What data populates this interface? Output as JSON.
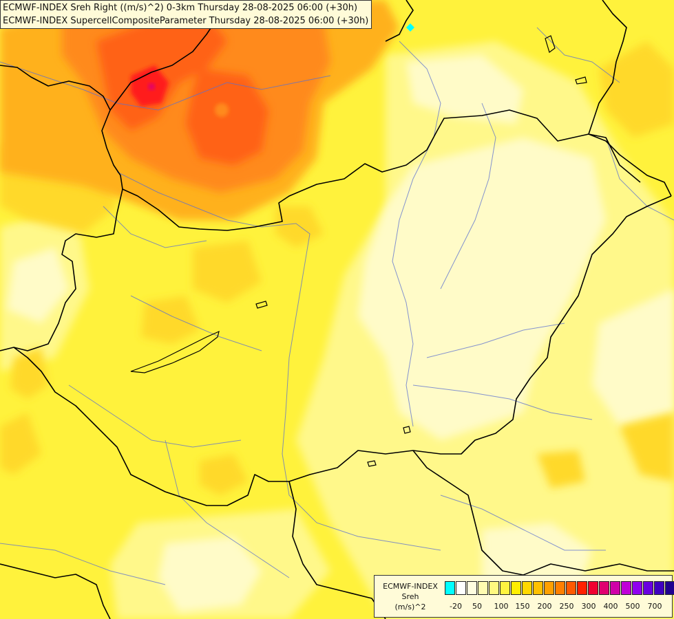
{
  "header": {
    "line1": "ECMWF-INDEX Sreh Right ((m/s)^2) 0-3km Thursday 28-08-2025 06:00 (+30h)",
    "line2": "ECMWF-INDEX SupercellCompositeParameter Thursday 28-08-2025 06:00 (+30h)"
  },
  "legend": {
    "title": [
      "ECMWF-INDEX",
      "Sreh",
      "(m/s)^2"
    ],
    "colors": [
      "#00ffff",
      "#ffffff",
      "#fffde0",
      "#fffbb0",
      "#fff880",
      "#fff440",
      "#ffee00",
      "#ffd800",
      "#ffc000",
      "#ffa000",
      "#ff8000",
      "#ff5a00",
      "#ff2000",
      "#f00030",
      "#e00070",
      "#d000a8",
      "#c000d8",
      "#9000f0",
      "#6a00e0",
      "#4000c0",
      "#200090"
    ],
    "ticks": [
      "-20",
      "50",
      "100",
      "150",
      "200",
      "250",
      "300",
      "400",
      "500",
      "700"
    ]
  },
  "map": {
    "colors": {
      "light": "#fffbc8",
      "pale": "#fff88a",
      "yellow": "#fff23c",
      "gold": "#ffd92a",
      "orange": "#ffb11e",
      "dark_orange": "#ff8a1a",
      "red_orange": "#ff6214",
      "red": "#ff1e1e",
      "magenta": "#e00070",
      "cyan": "#00ffff",
      "border": "#000000",
      "river": "#5a6fd0"
    }
  }
}
